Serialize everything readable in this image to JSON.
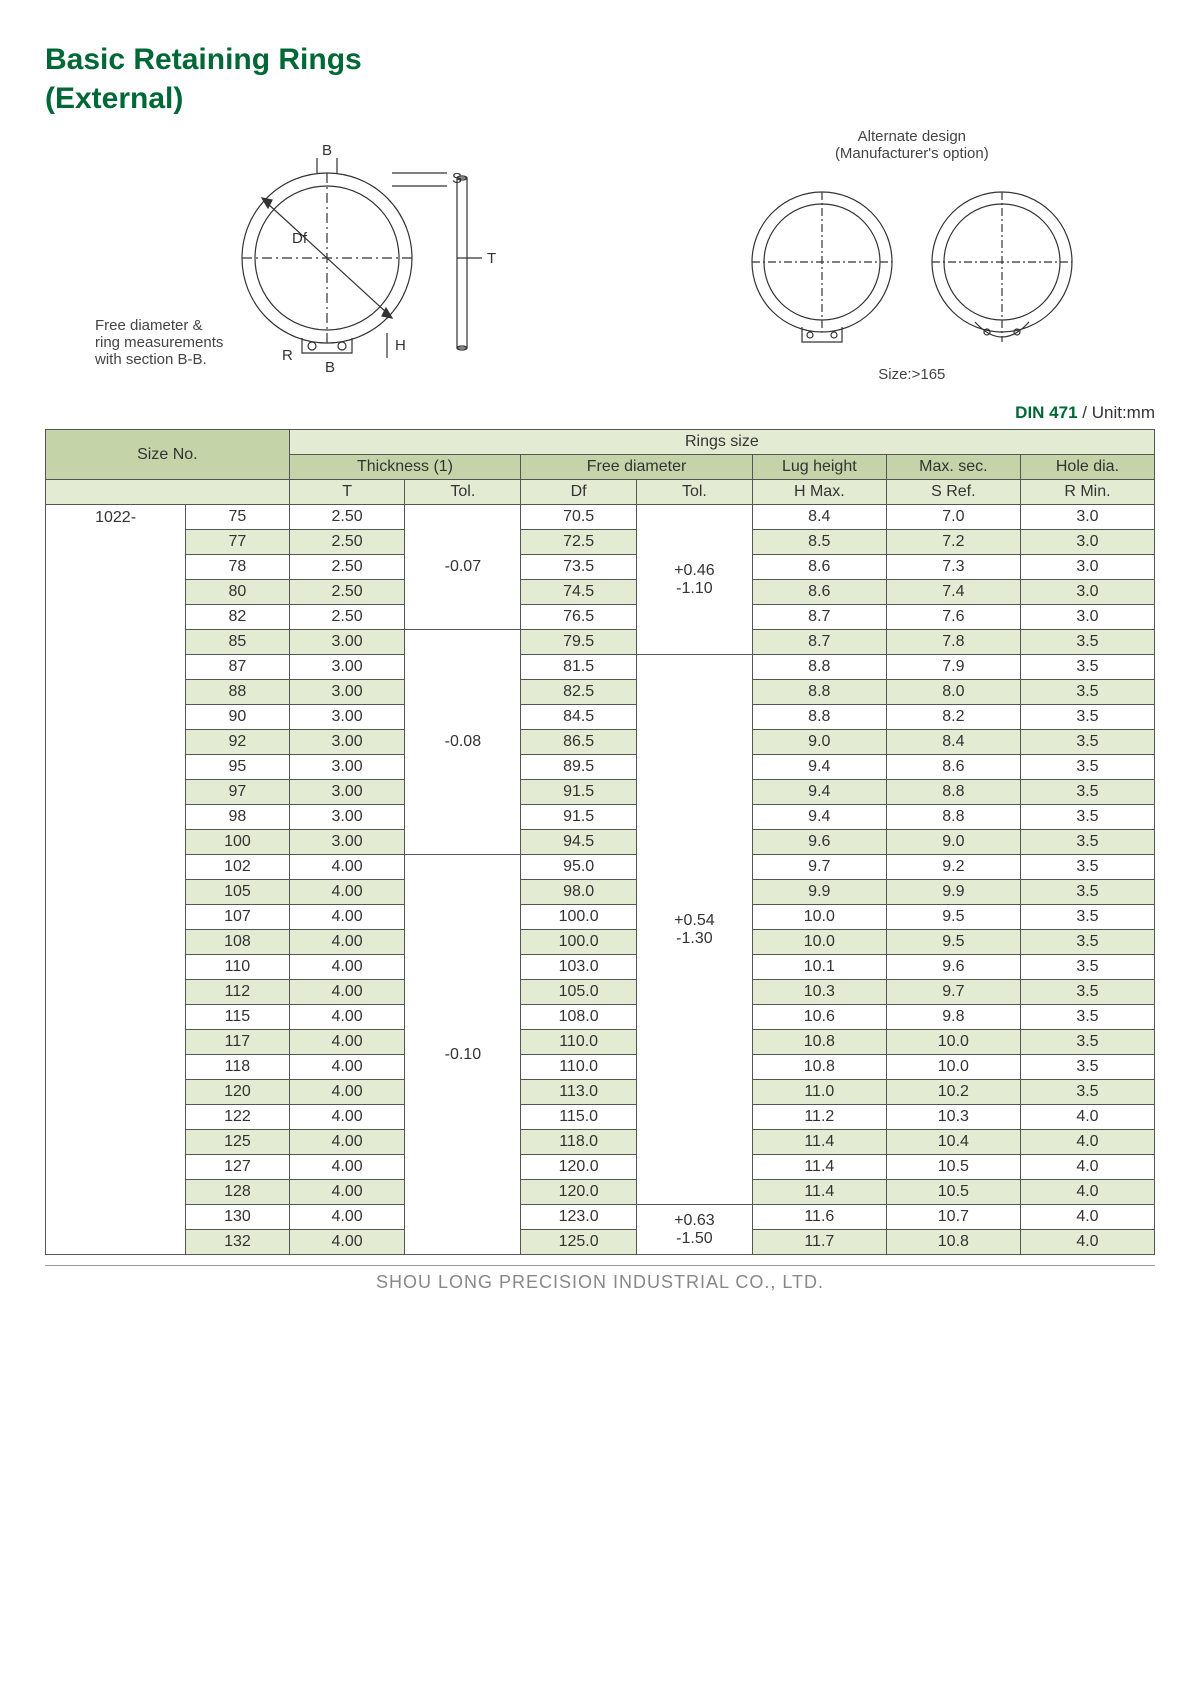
{
  "title1": "Basic Retaining Rings",
  "title2": "(External)",
  "diagramLeft": {
    "B1": "B",
    "S": "S",
    "Df": "Df",
    "T": "T",
    "H": "H",
    "R": "R",
    "B2": "B",
    "caption": "Free diameter &\nring measurements\nwith section B-B."
  },
  "diagramRight": {
    "caption": "Alternate design\n(Manufacturer's option)",
    "sizeNote": "Size:>165"
  },
  "dinCode": "DIN 471",
  "unit": " / Unit:mm",
  "headers": {
    "sizeNo": "Size No.",
    "ringsSize": "Rings size",
    "thickness": "Thickness (1)",
    "freeDia": "Free diameter",
    "lug": "Lug height",
    "maxSec": "Max. sec.",
    "holeDia": "Hole dia.",
    "T": "T",
    "tTol": "Tol.",
    "Df": "Df",
    "dfTol": "Tol.",
    "HMax": "H Max.",
    "SRef": "S Ref.",
    "RMin": "R Min."
  },
  "prefix": "1022-",
  "rows": [
    {
      "n": "75",
      "t": "2.50",
      "df": "70.5",
      "h": "8.4",
      "s": "7.0",
      "r": "3.0"
    },
    {
      "n": "77",
      "t": "2.50",
      "df": "72.5",
      "h": "8.5",
      "s": "7.2",
      "r": "3.0"
    },
    {
      "n": "78",
      "t": "2.50",
      "df": "73.5",
      "h": "8.6",
      "s": "7.3",
      "r": "3.0"
    },
    {
      "n": "80",
      "t": "2.50",
      "df": "74.5",
      "h": "8.6",
      "s": "7.4",
      "r": "3.0"
    },
    {
      "n": "82",
      "t": "2.50",
      "df": "76.5",
      "h": "8.7",
      "s": "7.6",
      "r": "3.0"
    },
    {
      "n": "85",
      "t": "3.00",
      "df": "79.5",
      "h": "8.7",
      "s": "7.8",
      "r": "3.5"
    },
    {
      "n": "87",
      "t": "3.00",
      "df": "81.5",
      "h": "8.8",
      "s": "7.9",
      "r": "3.5"
    },
    {
      "n": "88",
      "t": "3.00",
      "df": "82.5",
      "h": "8.8",
      "s": "8.0",
      "r": "3.5"
    },
    {
      "n": "90",
      "t": "3.00",
      "df": "84.5",
      "h": "8.8",
      "s": "8.2",
      "r": "3.5"
    },
    {
      "n": "92",
      "t": "3.00",
      "df": "86.5",
      "h": "9.0",
      "s": "8.4",
      "r": "3.5"
    },
    {
      "n": "95",
      "t": "3.00",
      "df": "89.5",
      "h": "9.4",
      "s": "8.6",
      "r": "3.5"
    },
    {
      "n": "97",
      "t": "3.00",
      "df": "91.5",
      "h": "9.4",
      "s": "8.8",
      "r": "3.5"
    },
    {
      "n": "98",
      "t": "3.00",
      "df": "91.5",
      "h": "9.4",
      "s": "8.8",
      "r": "3.5"
    },
    {
      "n": "100",
      "t": "3.00",
      "df": "94.5",
      "h": "9.6",
      "s": "9.0",
      "r": "3.5"
    },
    {
      "n": "102",
      "t": "4.00",
      "df": "95.0",
      "h": "9.7",
      "s": "9.2",
      "r": "3.5"
    },
    {
      "n": "105",
      "t": "4.00",
      "df": "98.0",
      "h": "9.9",
      "s": "9.9",
      "r": "3.5"
    },
    {
      "n": "107",
      "t": "4.00",
      "df": "100.0",
      "h": "10.0",
      "s": "9.5",
      "r": "3.5"
    },
    {
      "n": "108",
      "t": "4.00",
      "df": "100.0",
      "h": "10.0",
      "s": "9.5",
      "r": "3.5"
    },
    {
      "n": "110",
      "t": "4.00",
      "df": "103.0",
      "h": "10.1",
      "s": "9.6",
      "r": "3.5"
    },
    {
      "n": "112",
      "t": "4.00",
      "df": "105.0",
      "h": "10.3",
      "s": "9.7",
      "r": "3.5"
    },
    {
      "n": "115",
      "t": "4.00",
      "df": "108.0",
      "h": "10.6",
      "s": "9.8",
      "r": "3.5"
    },
    {
      "n": "117",
      "t": "4.00",
      "df": "110.0",
      "h": "10.8",
      "s": "10.0",
      "r": "3.5"
    },
    {
      "n": "118",
      "t": "4.00",
      "df": "110.0",
      "h": "10.8",
      "s": "10.0",
      "r": "3.5"
    },
    {
      "n": "120",
      "t": "4.00",
      "df": "113.0",
      "h": "11.0",
      "s": "10.2",
      "r": "3.5"
    },
    {
      "n": "122",
      "t": "4.00",
      "df": "115.0",
      "h": "11.2",
      "s": "10.3",
      "r": "4.0"
    },
    {
      "n": "125",
      "t": "4.00",
      "df": "118.0",
      "h": "11.4",
      "s": "10.4",
      "r": "4.0"
    },
    {
      "n": "127",
      "t": "4.00",
      "df": "120.0",
      "h": "11.4",
      "s": "10.5",
      "r": "4.0"
    },
    {
      "n": "128",
      "t": "4.00",
      "df": "120.0",
      "h": "11.4",
      "s": "10.5",
      "r": "4.0"
    },
    {
      "n": "130",
      "t": "4.00",
      "df": "123.0",
      "h": "11.6",
      "s": "10.7",
      "r": "4.0"
    },
    {
      "n": "132",
      "t": "4.00",
      "df": "125.0",
      "h": "11.7",
      "s": "10.8",
      "r": "4.0"
    }
  ],
  "tolGroups": {
    "t": [
      {
        "start": 0,
        "span": 5,
        "val": "-0.07"
      },
      {
        "start": 5,
        "span": 9,
        "val": "-0.08"
      },
      {
        "start": 14,
        "span": 16,
        "val": "-0.10"
      }
    ],
    "df": [
      {
        "start": 0,
        "span": 6,
        "val": "+0.46\n-1.10"
      },
      {
        "start": 6,
        "span": 22,
        "val": "+0.54\n-1.30"
      },
      {
        "start": 28,
        "span": 2,
        "val": "+0.63\n-1.50"
      }
    ]
  },
  "footer": "SHOU LONG PRECISION INDUSTRIAL CO., LTD.",
  "colors": {
    "h1": "#c5d3a8",
    "h2": "#e4ebd3",
    "title": "#006837",
    "border": "#555"
  }
}
